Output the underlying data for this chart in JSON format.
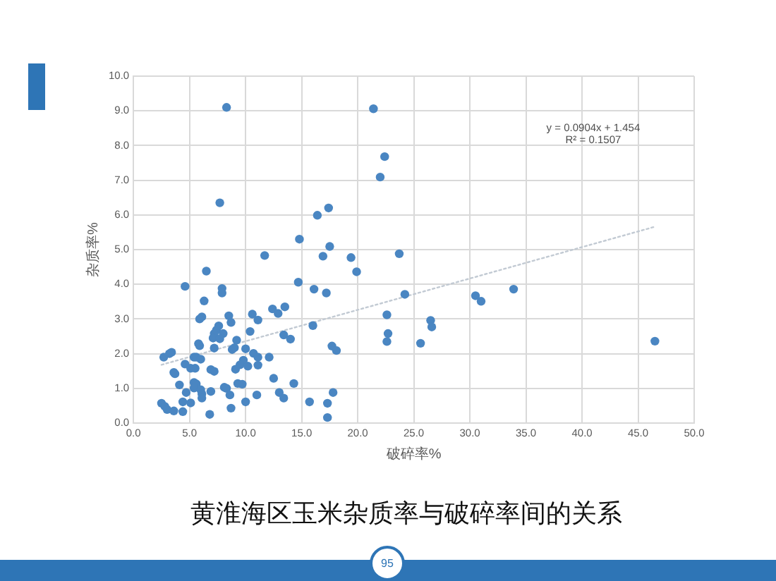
{
  "chart_data": {
    "type": "scatter",
    "title": "黄淮海区玉米杂质率与破碎率间的关系",
    "xlabel": "破碎率%",
    "ylabel": "杂质率%",
    "annotations": [
      "y = 0.0904x + 1.454",
      "R² = 0.1507",
      "95"
    ],
    "xlim": [
      0,
      50
    ],
    "ylim": [
      0,
      10
    ],
    "xticks": [
      {
        "value": 0,
        "label": "0.0"
      },
      {
        "value": 5,
        "label": "5.0"
      },
      {
        "value": 10,
        "label": "10.0"
      },
      {
        "value": 15,
        "label": "15.0"
      },
      {
        "value": 20,
        "label": "20.0"
      },
      {
        "value": 25,
        "label": "25.0"
      },
      {
        "value": 30,
        "label": "30.0"
      },
      {
        "value": 35,
        "label": "35.0"
      },
      {
        "value": 40,
        "label": "40.0"
      },
      {
        "value": 45,
        "label": "45.0"
      },
      {
        "value": 50,
        "label": "50.0"
      }
    ],
    "yticks": [
      {
        "value": 0,
        "label": "0.0"
      },
      {
        "value": 1,
        "label": "1.0"
      },
      {
        "value": 2,
        "label": "2.0"
      },
      {
        "value": 3,
        "label": "3.0"
      },
      {
        "value": 4,
        "label": "4.0"
      },
      {
        "value": 5,
        "label": "5.0"
      },
      {
        "value": 6,
        "label": "6.0"
      },
      {
        "value": 7,
        "label": "7.0"
      },
      {
        "value": 8,
        "label": "8.0"
      },
      {
        "value": 9,
        "label": "9.0"
      },
      {
        "value": 10,
        "label": "10.0"
      }
    ],
    "grid": true,
    "series": [
      {
        "type": "scatter",
        "color": "#4a86c2",
        "marker": "circle",
        "x": [
          8.3,
          21.4,
          22.4,
          22.0,
          7.7,
          17.4,
          16.4,
          14.8,
          17.5,
          23.7,
          11.7,
          16.9,
          19.4,
          19.9,
          6.5,
          4.6,
          14.7,
          7.9,
          7.9,
          16.1,
          17.2,
          24.2,
          30.5,
          31.0,
          33.9,
          6.3,
          12.4,
          13.5,
          12.9,
          10.6,
          11.1,
          8.5,
          8.7,
          6.1,
          5.9,
          22.6,
          26.5,
          26.6,
          22.7,
          22.6,
          25.6,
          46.5,
          16.0,
          10.4,
          13.4,
          14.0,
          17.7,
          18.1,
          7.6,
          7.4,
          7.2,
          8.0,
          7.1,
          7.7,
          9.2,
          5.8,
          5.9,
          7.2,
          9.0,
          8.8,
          10.0,
          10.7,
          11.1,
          12.1,
          3.4,
          3.2,
          2.7,
          5.4,
          5.6,
          6.0,
          4.6,
          5.1,
          5.5,
          9.8,
          9.5,
          10.2,
          11.1,
          9.1,
          6.9,
          7.2,
          3.6,
          3.7,
          12.5,
          4.1,
          5.4,
          5.6,
          5.4,
          6.0,
          4.7,
          6.9,
          8.1,
          8.3,
          9.3,
          9.7,
          14.3,
          13.0,
          17.8,
          6.1,
          6.1,
          8.6,
          11.0,
          13.4,
          15.7,
          17.3,
          10.0,
          4.4,
          5.1,
          2.5,
          2.8,
          3.0,
          3.6,
          4.4,
          8.7,
          6.8,
          17.3
        ],
        "values": [
          9.1,
          9.06,
          7.68,
          7.09,
          6.35,
          6.2,
          5.99,
          5.3,
          5.09,
          4.88,
          4.83,
          4.81,
          4.77,
          4.36,
          4.38,
          3.94,
          4.06,
          3.88,
          3.75,
          3.86,
          3.75,
          3.71,
          3.67,
          3.51,
          3.86,
          3.52,
          3.29,
          3.35,
          3.16,
          3.14,
          2.97,
          3.09,
          2.9,
          3.06,
          3.0,
          3.12,
          2.96,
          2.77,
          2.58,
          2.35,
          2.3,
          2.36,
          2.81,
          2.64,
          2.54,
          2.42,
          2.22,
          2.09,
          2.8,
          2.68,
          2.58,
          2.58,
          2.45,
          2.43,
          2.39,
          2.29,
          2.23,
          2.16,
          2.17,
          2.12,
          2.14,
          2.01,
          1.9,
          1.9,
          2.04,
          2.0,
          1.9,
          1.9,
          1.9,
          1.84,
          1.7,
          1.58,
          1.58,
          1.81,
          1.68,
          1.64,
          1.67,
          1.55,
          1.54,
          1.49,
          1.46,
          1.42,
          1.29,
          1.1,
          1.17,
          1.13,
          1.01,
          0.96,
          0.88,
          0.91,
          1.03,
          1.0,
          1.14,
          1.12,
          1.14,
          0.88,
          0.88,
          0.84,
          0.72,
          0.81,
          0.81,
          0.72,
          0.61,
          0.57,
          0.61,
          0.61,
          0.58,
          0.57,
          0.48,
          0.39,
          0.35,
          0.33,
          0.43,
          0.25,
          0.16
        ]
      },
      {
        "type": "line",
        "color": "#c2cad3",
        "line_style": "dotted",
        "marker": "none",
        "x": [
          2.5,
          46.5
        ],
        "values": [
          1.68,
          5.66
        ]
      }
    ]
  }
}
